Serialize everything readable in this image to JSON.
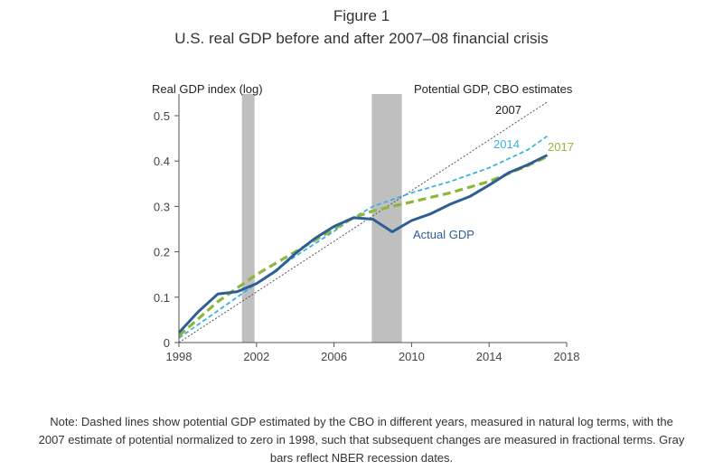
{
  "figure_label": "Figure 1",
  "note": "Note: Dashed lines show potential GDP estimated by the CBO in different years, measured in natural log terms, with the 2007 estimate of potential normalized to zero in 1998, such that subsequent changes are measured in fractional terms. Gray bars reflect NBER recession dates.",
  "chart_data": {
    "type": "line",
    "title": "U.S. real GDP before and after 2007–08 financial crisis",
    "xlabel": "",
    "ylabel": "Real GDP index (log)",
    "xlim": [
      1998,
      2018
    ],
    "ylim": [
      0,
      0.55
    ],
    "x_ticks": [
      1998,
      2002,
      2006,
      2010,
      2014,
      2018
    ],
    "y_ticks": [
      0,
      0.1,
      0.2,
      0.3,
      0.4,
      0.5
    ],
    "y_tick_labels": [
      "0",
      "0.1",
      "0.2",
      "0.3",
      "0.4",
      "0.5"
    ],
    "grid": false,
    "legend_header": "Potential GDP, CBO estimates",
    "recessions": [
      {
        "start": 2001.25,
        "end": 2001.9
      },
      {
        "start": 2007.95,
        "end": 2009.5
      }
    ],
    "series": [
      {
        "name": "2007",
        "label": "2007",
        "style": "dotted",
        "color": "#555555",
        "x": [
          1998,
          2017
        ],
        "y": [
          0.0,
          0.53
        ]
      },
      {
        "name": "2014",
        "label": "2014",
        "style": "dashed",
        "color": "#3bb3e0",
        "x": [
          1998,
          2000,
          2002,
          2004,
          2006,
          2007,
          2008,
          2010,
          2012,
          2014,
          2016,
          2017
        ],
        "y": [
          0.01,
          0.07,
          0.13,
          0.19,
          0.245,
          0.275,
          0.3,
          0.33,
          0.355,
          0.385,
          0.425,
          0.455
        ]
      },
      {
        "name": "2017",
        "label": "2017",
        "style": "dashed",
        "color": "#8cb63c",
        "x": [
          1998,
          2000,
          2002,
          2004,
          2006,
          2007,
          2008,
          2010,
          2012,
          2014,
          2016,
          2017
        ],
        "y": [
          0.015,
          0.09,
          0.15,
          0.2,
          0.25,
          0.275,
          0.29,
          0.31,
          0.33,
          0.355,
          0.39,
          0.41
        ]
      },
      {
        "name": "Actual GDP",
        "label": "Actual GDP",
        "style": "solid",
        "color": "#2e5f94",
        "x": [
          1998,
          1999,
          2000,
          2001,
          2002,
          2003,
          2004,
          2005,
          2006,
          2007,
          2008,
          2009,
          2010,
          2011,
          2012,
          2013,
          2014,
          2015,
          2016,
          2017
        ],
        "y": [
          0.022,
          0.068,
          0.107,
          0.112,
          0.13,
          0.158,
          0.196,
          0.229,
          0.256,
          0.275,
          0.272,
          0.244,
          0.269,
          0.284,
          0.305,
          0.322,
          0.347,
          0.374,
          0.392,
          0.413
        ]
      }
    ]
  }
}
